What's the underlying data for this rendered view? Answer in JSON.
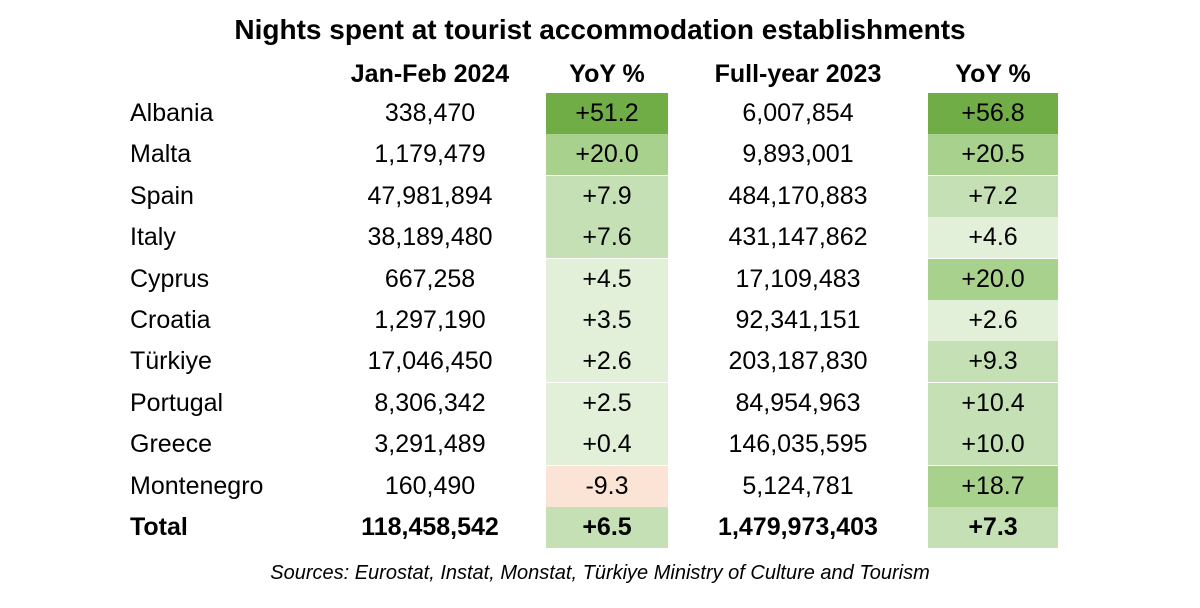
{
  "title": "Nights spent at tourist accommodation establishments",
  "headers": {
    "col1": "Jan-Feb 2024",
    "col2": "YoY %",
    "col3": "Full-year 2023",
    "col4": "YoY %"
  },
  "rows": [
    {
      "country": "Albania",
      "jan_feb_2024": "338,470",
      "yoy_2024": "+51.2",
      "yoy_2024_color": "#70ad47",
      "full_2023": "6,007,854",
      "yoy_2023": "+56.8",
      "yoy_2023_color": "#70ad47"
    },
    {
      "country": "Malta",
      "jan_feb_2024": "1,179,479",
      "yoy_2024": "+20.0",
      "yoy_2024_color": "#a9d18e",
      "full_2023": "9,893,001",
      "yoy_2023": "+20.5",
      "yoy_2023_color": "#a9d18e"
    },
    {
      "country": "Spain",
      "jan_feb_2024": "47,981,894",
      "yoy_2024": "+7.9",
      "yoy_2024_color": "#c5e0b4",
      "full_2023": "484,170,883",
      "yoy_2023": "+7.2",
      "yoy_2023_color": "#c5e0b4"
    },
    {
      "country": "Italy",
      "jan_feb_2024": "38,189,480",
      "yoy_2024": "+7.6",
      "yoy_2024_color": "#c5e0b4",
      "full_2023": "431,147,862",
      "yoy_2023": "+4.6",
      "yoy_2023_color": "#e2f0d9"
    },
    {
      "country": "Cyprus",
      "jan_feb_2024": "667,258",
      "yoy_2024": "+4.5",
      "yoy_2024_color": "#e2f0d9",
      "full_2023": "17,109,483",
      "yoy_2023": "+20.0",
      "yoy_2023_color": "#a9d18e"
    },
    {
      "country": "Croatia",
      "jan_feb_2024": "1,297,190",
      "yoy_2024": "+3.5",
      "yoy_2024_color": "#e2f0d9",
      "full_2023": "92,341,151",
      "yoy_2023": "+2.6",
      "yoy_2023_color": "#e2f0d9"
    },
    {
      "country": "Türkiye",
      "jan_feb_2024": "17,046,450",
      "yoy_2024": "+2.6",
      "yoy_2024_color": "#e2f0d9",
      "full_2023": "203,187,830",
      "yoy_2023": "+9.3",
      "yoy_2023_color": "#c5e0b4"
    },
    {
      "country": "Portugal",
      "jan_feb_2024": "8,306,342",
      "yoy_2024": "+2.5",
      "yoy_2024_color": "#e2f0d9",
      "full_2023": "84,954,963",
      "yoy_2023": "+10.4",
      "yoy_2023_color": "#c5e0b4"
    },
    {
      "country": "Greece",
      "jan_feb_2024": "3,291,489",
      "yoy_2024": "+0.4",
      "yoy_2024_color": "#e2f0d9",
      "full_2023": "146,035,595",
      "yoy_2023": "+10.0",
      "yoy_2023_color": "#c5e0b4"
    },
    {
      "country": "Montenegro",
      "jan_feb_2024": "160,490",
      "yoy_2024": "-9.3",
      "yoy_2024_color": "#fbe4d5",
      "full_2023": "5,124,781",
      "yoy_2023": "+18.7",
      "yoy_2023_color": "#a9d18e"
    }
  ],
  "total": {
    "label": "Total",
    "jan_feb_2024": "118,458,542",
    "yoy_2024": "+6.5",
    "yoy_2024_color": "#c5e0b4",
    "full_2023": "1,479,973,403",
    "yoy_2023": "+7.3",
    "yoy_2023_color": "#c5e0b4"
  },
  "source": "Sources: Eurostat, Instat, Monstat, Türkiye Ministry of Culture and Tourism"
}
